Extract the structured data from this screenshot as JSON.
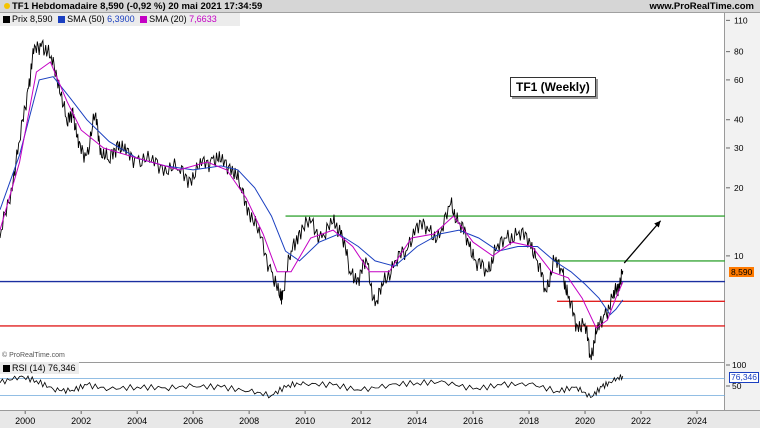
{
  "header": {
    "title": "TF1 Hebdomadaire 8,590 (-0,92 %) 20 mai 2021 17:34:59",
    "brand": "www.ProRealTime.com"
  },
  "legend": {
    "price_label": "Prix",
    "price_value": "8,590",
    "sma50_label": "SMA (50)",
    "sma50_value": "6,3900",
    "sma20_label": "SMA (20)",
    "sma20_value": "7,6633"
  },
  "chart_title_box": "TF1 (Weekly)",
  "copyright": "© ProRealTime.com",
  "price_tag": "8,590",
  "rsi_legend": {
    "label": "RSI (14)",
    "value": "76,346"
  },
  "rsi_tag": "76,346",
  "colors": {
    "price": "#000000",
    "sma50": "#1a3fc0",
    "sma20": "#c400c4",
    "green_line": "#3aa63a",
    "red_line": "#e02020",
    "blue_line": "#1a2fa0",
    "rsi_bands": "#6fa8dc"
  },
  "chart_data": {
    "type": "line",
    "scale": "log",
    "ylim": [
      3.5,
      115
    ],
    "xlim": [
      1999.1,
      2025
    ],
    "y_ticks": [
      "110",
      "80",
      "60",
      "40",
      "30",
      "20",
      "10"
    ],
    "x_ticks": [
      "2000",
      "2002",
      "2004",
      "2006",
      "2008",
      "2010",
      "2012",
      "2014",
      "2016",
      "2018",
      "2020",
      "2022",
      "2024"
    ],
    "series": [
      {
        "name": "Prix",
        "x": [
          1999.1,
          1999.5,
          1999.8,
          2000.1,
          2000.3,
          2000.6,
          2000.9,
          2001.2,
          2001.5,
          2001.7,
          2001.9,
          2002.2,
          2002.5,
          2002.7,
          2003.0,
          2003.3,
          2003.6,
          2004.0,
          2004.5,
          2005.0,
          2005.5,
          2005.9,
          2006.3,
          2006.7,
          2007.0,
          2007.4,
          2007.7,
          2008.0,
          2008.4,
          2008.8,
          2009.1,
          2009.2,
          2009.5,
          2009.8,
          2010.2,
          2010.6,
          2011.0,
          2011.3,
          2011.6,
          2011.9,
          2012.2,
          2012.5,
          2012.8,
          2013.2,
          2013.6,
          2014.0,
          2014.4,
          2014.8,
          2015.2,
          2015.5,
          2015.8,
          2016.1,
          2016.5,
          2016.8,
          2017.2,
          2017.6,
          2018.0,
          2018.3,
          2018.6,
          2018.9,
          2019.2,
          2019.4,
          2019.7,
          2020.0,
          2020.2,
          2020.4,
          2020.7,
          2021.0,
          2021.2,
          2021.35
        ],
        "values": [
          12,
          20,
          32,
          55,
          78,
          88,
          75,
          60,
          38,
          45,
          30,
          28,
          42,
          30,
          26,
          32,
          28,
          27,
          26,
          25,
          24,
          22,
          25,
          27,
          26,
          25,
          20,
          16,
          12,
          8.5,
          6.5,
          7.0,
          10.5,
          13,
          14,
          12,
          14,
          13,
          8.5,
          8.0,
          9.5,
          6.0,
          7.5,
          9.5,
          10.5,
          14,
          13,
          12,
          17,
          14,
          12,
          9.5,
          8.5,
          10.5,
          12,
          12.5,
          12,
          9.5,
          7.0,
          9.5,
          8.5,
          6.5,
          5.0,
          5.0,
          3.6,
          4.5,
          5.5,
          6.5,
          7.5,
          8.59
        ]
      },
      {
        "name": "SMA (50)",
        "x": [
          1999.1,
          1999.8,
          2000.5,
          2001.0,
          2001.6,
          2002.2,
          2003.0,
          2004.0,
          2005.0,
          2006.0,
          2007.0,
          2007.6,
          2008.2,
          2008.8,
          2009.3,
          2009.8,
          2010.5,
          2011.2,
          2011.9,
          2012.5,
          2013.2,
          2014.0,
          2014.8,
          2015.5,
          2016.2,
          2016.9,
          2017.6,
          2018.3,
          2018.9,
          2019.5,
          2020.0,
          2020.5,
          2020.9,
          2021.1,
          2021.35
        ],
        "values": [
          16,
          28,
          60,
          62,
          50,
          40,
          32,
          27,
          25,
          24,
          25,
          24,
          20,
          15,
          10.5,
          9.5,
          11.5,
          12.5,
          11,
          9.5,
          9.0,
          11,
          12.5,
          13,
          12,
          10.5,
          11,
          11,
          9.5,
          8.5,
          7.5,
          6.5,
          5.5,
          5.8,
          6.39
        ]
      },
      {
        "name": "SMA (20)",
        "x": [
          1999.1,
          1999.8,
          2000.4,
          2000.9,
          2001.5,
          2002.0,
          2002.8,
          2003.6,
          2004.5,
          2005.5,
          2006.5,
          2007.2,
          2007.9,
          2008.5,
          2009.0,
          2009.5,
          2010.2,
          2011.0,
          2011.7,
          2012.3,
          2013.0,
          2013.8,
          2014.6,
          2015.3,
          2016.0,
          2016.7,
          2017.4,
          2018.1,
          2018.8,
          2019.4,
          2019.9,
          2020.4,
          2020.8,
          2021.1,
          2021.35
        ],
        "values": [
          13,
          26,
          65,
          72,
          48,
          36,
          30,
          28,
          26,
          24,
          26,
          24,
          18,
          12.5,
          8.5,
          8.5,
          12,
          13,
          11,
          8.5,
          8.5,
          12,
          12.5,
          15,
          11.5,
          10,
          11.5,
          11,
          8.5,
          8.0,
          6.5,
          4.8,
          5.2,
          6.5,
          7.66
        ]
      }
    ],
    "horizontal_lines": [
      {
        "value": 15,
        "x_from": 2009.3,
        "color": "#3aa63a"
      },
      {
        "value": 9.5,
        "x_from": 2018.9,
        "color": "#3aa63a"
      },
      {
        "value": 6.3,
        "x_from": 2019.0,
        "color": "#e02020"
      },
      {
        "value": 4.9,
        "x_from": 1999.1,
        "color": "#e02020"
      },
      {
        "value": 7.7,
        "x_from": 1999.1,
        "color": "#1a2fa0"
      }
    ],
    "annotation_arrow": {
      "x_from": 2021.4,
      "y_from": 9.3,
      "x_to": 2022.7,
      "y_to": 14.3
    },
    "rsi": {
      "ylim": [
        0,
        100
      ],
      "bands": [
        70,
        30
      ],
      "y_ticks": [
        "100",
        "50"
      ],
      "x": [
        1999.1,
        1999.8,
        2000.4,
        2001.0,
        2001.6,
        2002.2,
        2003.0,
        2004.0,
        2005.0,
        2006.0,
        2007.0,
        2008.0,
        2008.8,
        2009.4,
        2010.0,
        2011.0,
        2012.0,
        2013.0,
        2014.0,
        2015.0,
        2016.0,
        2017.0,
        2018.0,
        2019.0,
        2019.7,
        2020.2,
        2020.6,
        2021.0,
        2021.35
      ],
      "values": [
        60,
        75,
        65,
        45,
        40,
        55,
        45,
        50,
        48,
        52,
        50,
        40,
        30,
        55,
        58,
        55,
        42,
        55,
        60,
        62,
        45,
        55,
        58,
        40,
        50,
        25,
        50,
        65,
        76.3
      ]
    }
  }
}
